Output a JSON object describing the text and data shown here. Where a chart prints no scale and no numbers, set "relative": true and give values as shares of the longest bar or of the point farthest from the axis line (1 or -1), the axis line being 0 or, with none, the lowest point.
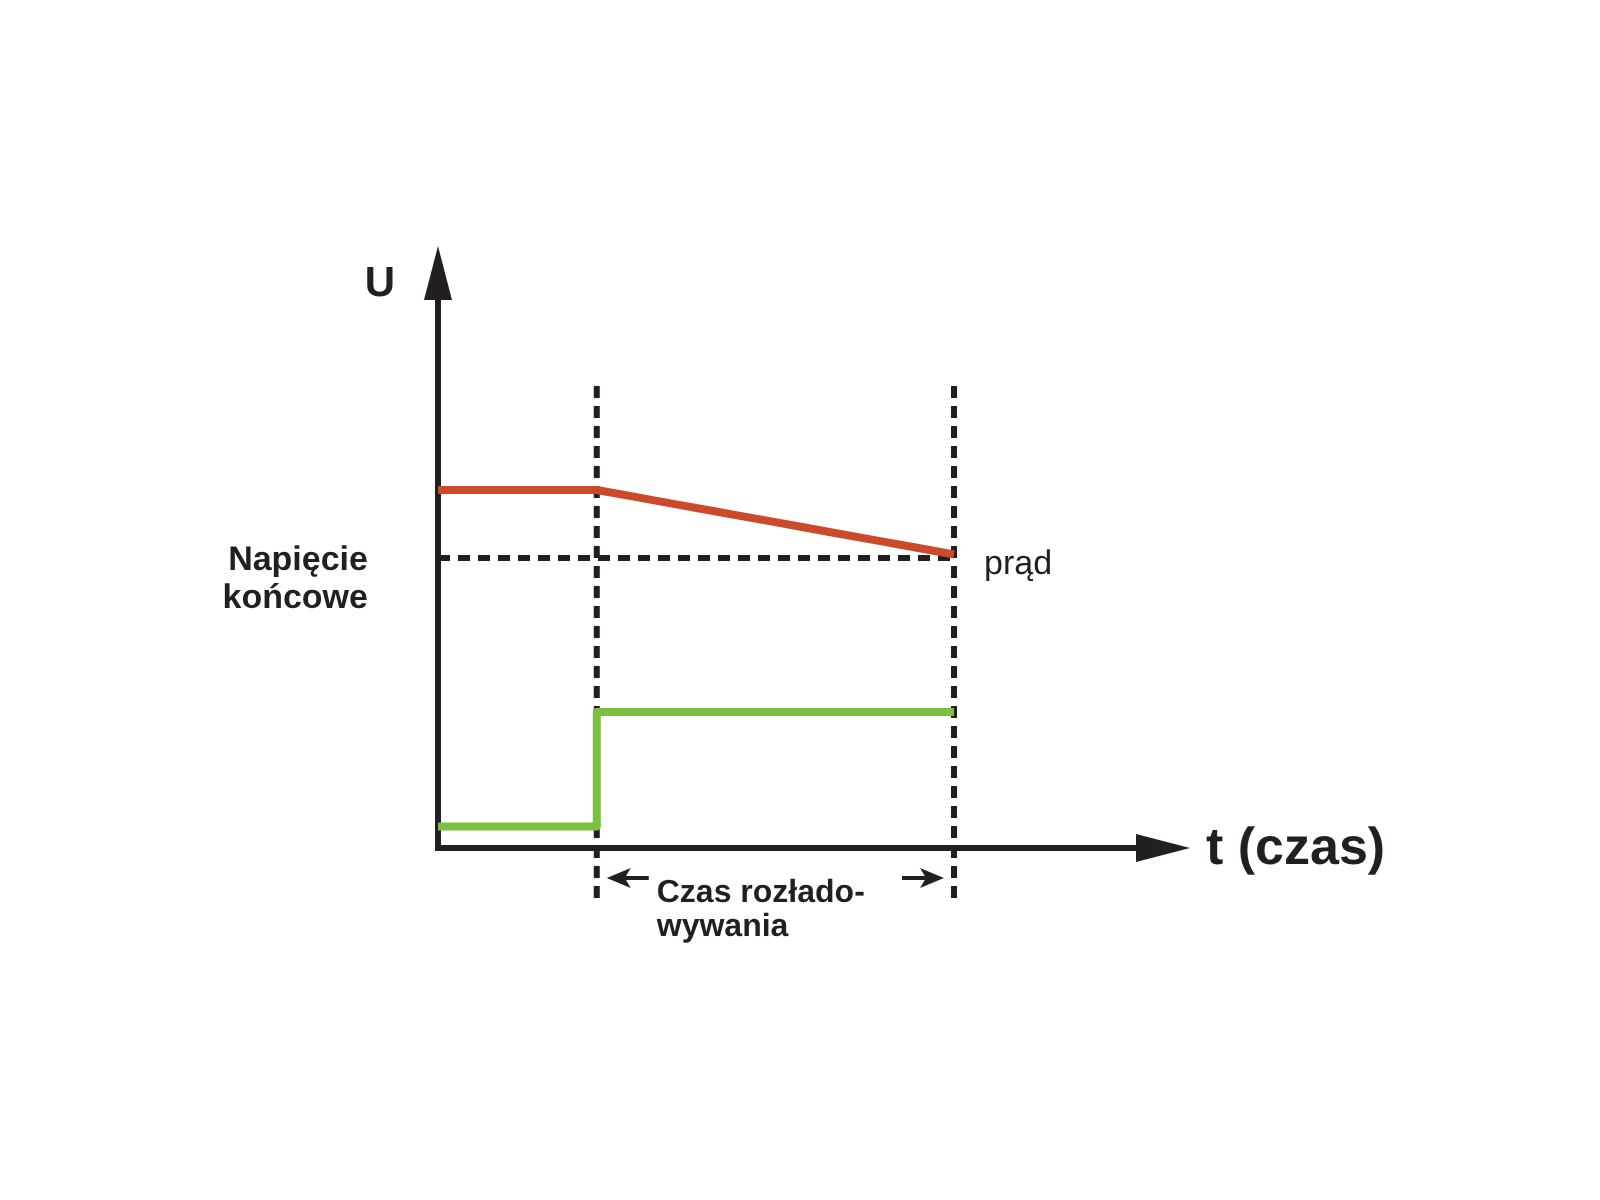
{
  "chart_data": {
    "type": "line",
    "relative": true,
    "xlabel": "t (czas)",
    "ylabel": "U",
    "categories": [
      null,
      null,
      null,
      null,
      null,
      null,
      null,
      null,
      null,
      null,
      null,
      null,
      null,
      null
    ],
    "series": [
      {
        "color": "#cc4a2c",
        "values": [
          1,
          1,
          1,
          1,
          1,
          0.98,
          0.96,
          0.94,
          0.92,
          0.9,
          0.88,
          0.86,
          0.84,
          0.82
        ]
      },
      {
        "type": "step",
        "color": "#7bbf43",
        "values": [
          0.06,
          0.06,
          0.06,
          0.06,
          0.38,
          0.38,
          0.38,
          0.38,
          0.38,
          0.38,
          0.38,
          0.38,
          0.38,
          0.38
        ]
      }
    ],
    "ref_lines": [
      {
        "axis": "y",
        "value": 0.81,
        "label": "Napięcie\nkońcowe",
        "line_style": "dashed"
      }
    ],
    "annotations": [
      "prąd",
      "Czas rozłado-\nwywania"
    ]
  }
}
